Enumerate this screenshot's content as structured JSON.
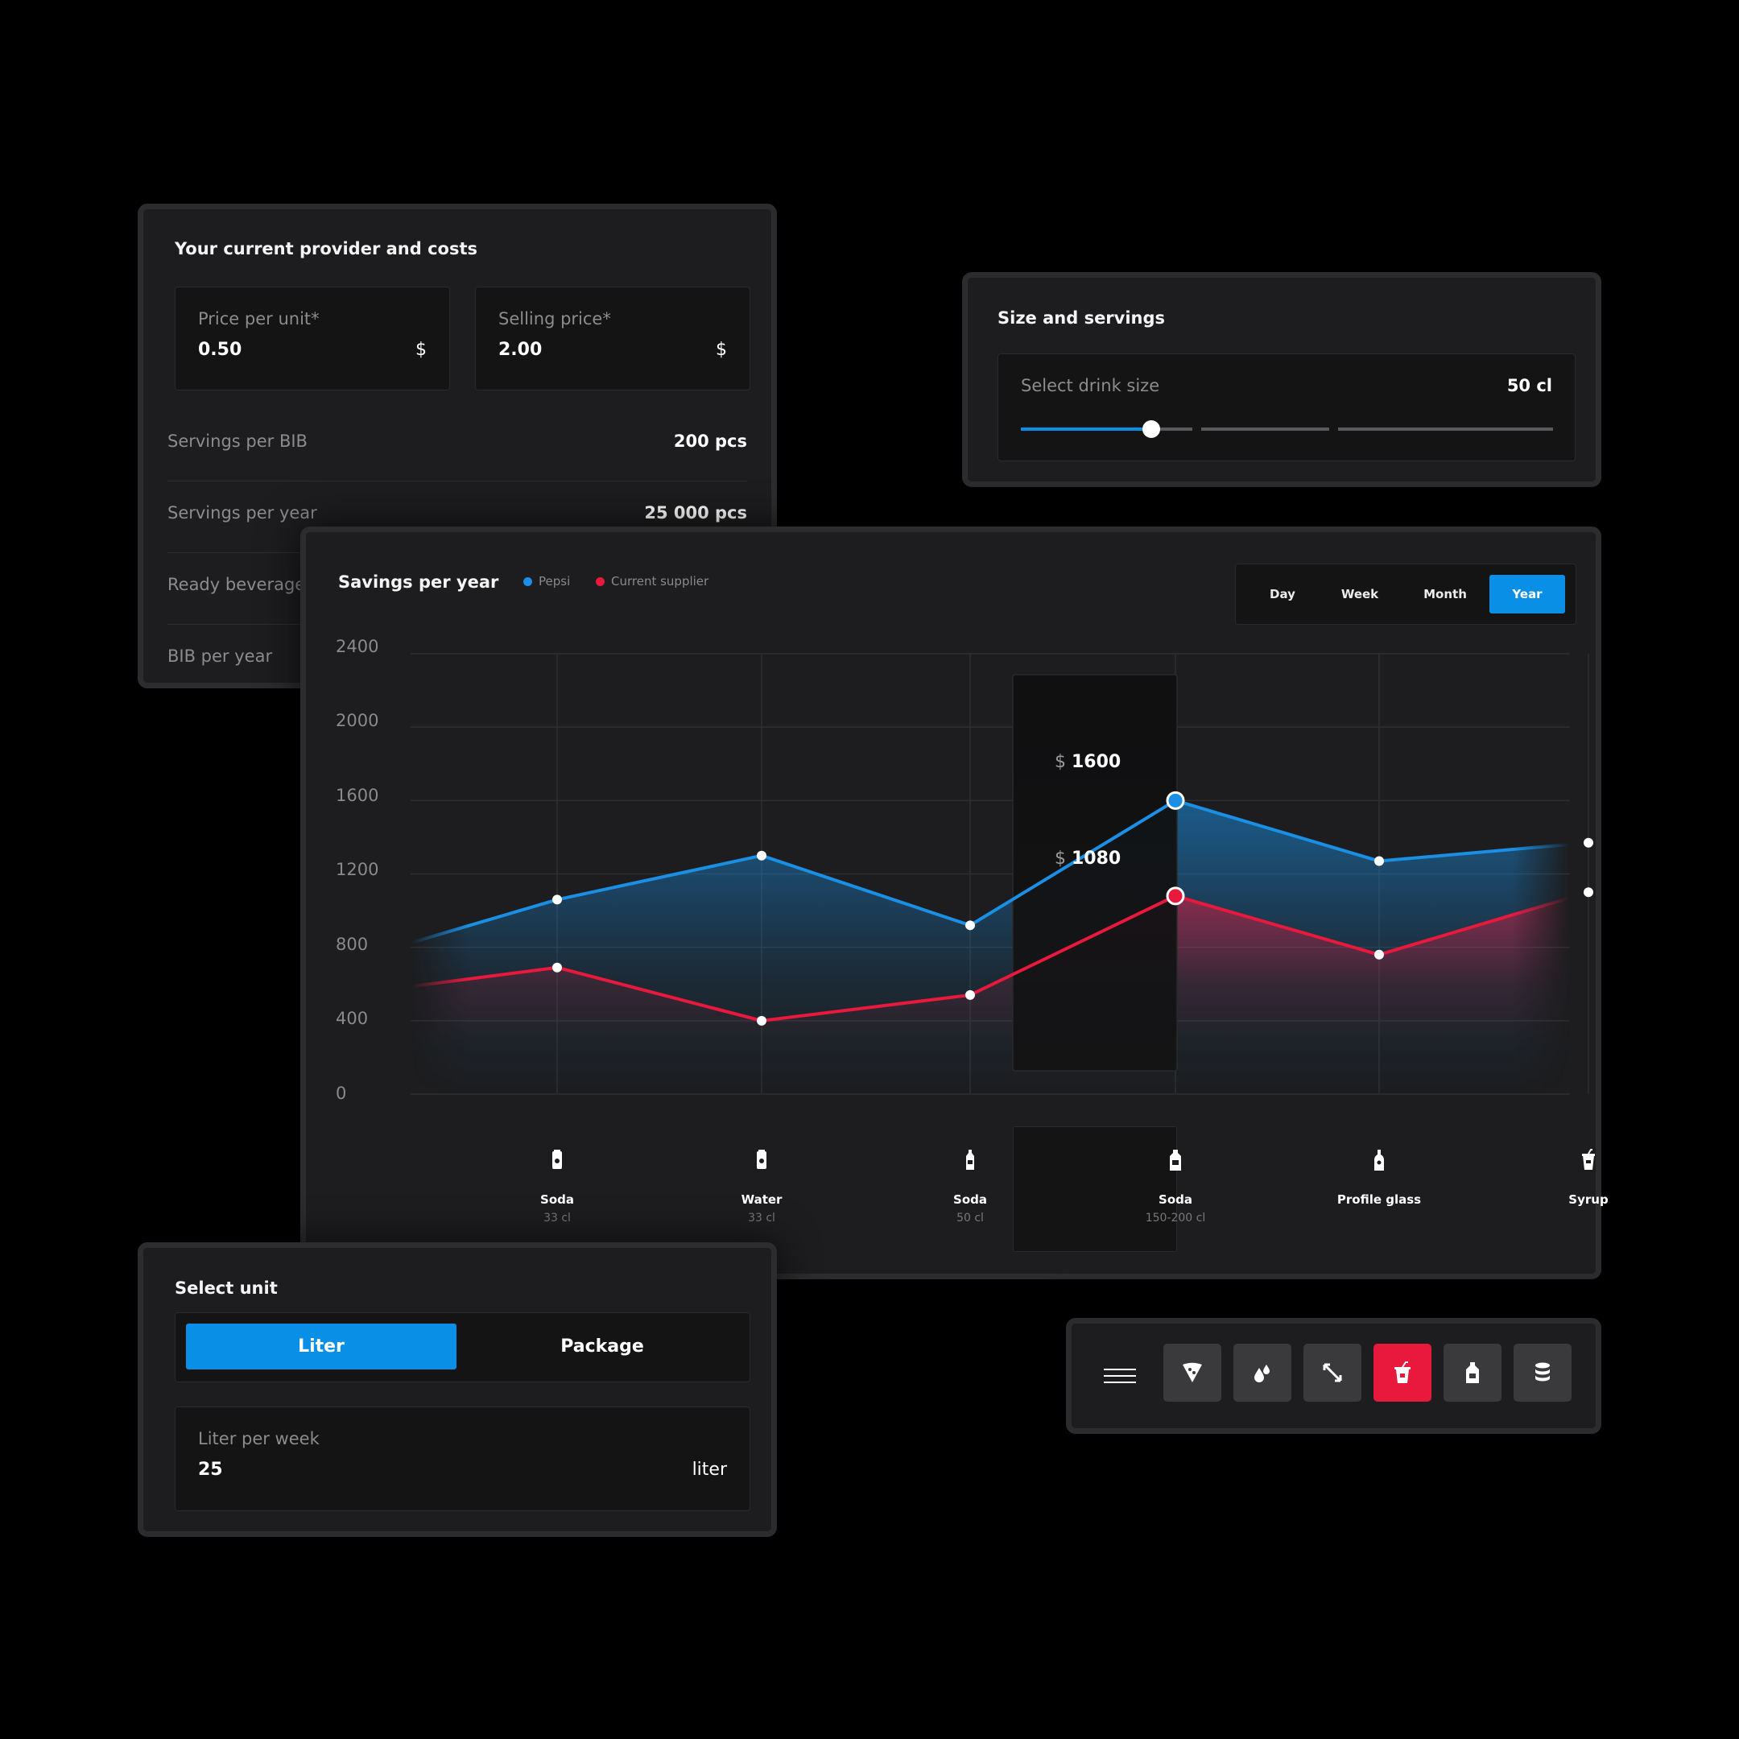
{
  "provider": {
    "title": "Your current provider and costs",
    "price_per_unit": {
      "label": "Price per unit*",
      "value": "0.50",
      "unit": "$"
    },
    "selling_price": {
      "label": "Selling price*",
      "value": "2.00",
      "unit": "$"
    },
    "rows": [
      {
        "label": "Servings per BIB",
        "value": "200 pcs"
      },
      {
        "label": "Servings per year",
        "value": "25 000 pcs"
      },
      {
        "label": "Ready beverage",
        "value": ""
      },
      {
        "label": "BIB per year",
        "value": ""
      }
    ]
  },
  "size": {
    "title": "Size and servings",
    "label": "Select drink size",
    "value": "50 cl",
    "slider_level": 0.245
  },
  "savings": {
    "title": "Savings per year",
    "periods": [
      "Day",
      "Week",
      "Month",
      "Year"
    ],
    "active_period": "Year",
    "tooltip": {
      "currency": "$",
      "pepsi": "1600",
      "current": "1080"
    },
    "categories": [
      {
        "name": "Soda",
        "sub": "33 cl",
        "icon": "can-icon"
      },
      {
        "name": "Water",
        "sub": "33 cl",
        "icon": "can-icon"
      },
      {
        "name": "Soda",
        "sub": "50 cl",
        "icon": "bottle-icon"
      },
      {
        "name": "Soda",
        "sub": "150-200 cl",
        "icon": "large-bottle-icon"
      },
      {
        "name": "Profile glass",
        "sub": "",
        "icon": "glass-bottle-icon"
      },
      {
        "name": "Syrup",
        "sub": "",
        "icon": "cup-icon"
      }
    ]
  },
  "chart_data": {
    "type": "area",
    "title": "Savings per year",
    "categories": [
      "Soda 33 cl",
      "Water 33 cl",
      "Soda 50 cl",
      "Soda 150-200 cl",
      "Profile glass",
      "Syrup"
    ],
    "series": [
      {
        "name": "Pepsi",
        "color": "#1a8fe3",
        "values": [
          1060,
          1300,
          920,
          1600,
          1270,
          1370
        ]
      },
      {
        "name": "Current supplier",
        "color": "#e8193c",
        "values": [
          690,
          400,
          540,
          1080,
          760,
          1100
        ]
      }
    ],
    "y_ticks": [
      "2400",
      "2000",
      "1600",
      "1200",
      "800",
      "400",
      "0"
    ],
    "ylim": [
      0,
      2400
    ],
    "grid": true,
    "legend": "top"
  },
  "unit": {
    "title": "Select unit",
    "options": [
      "Liter",
      "Package"
    ],
    "active": "Liter",
    "field": {
      "label": "Liter per week",
      "value": "25",
      "unit": "liter"
    }
  },
  "toolbar": {
    "menu_icon": "menu-icon",
    "tools": [
      "pizza-icon",
      "drops-icon",
      "exchange-icon",
      "cup-icon",
      "bottle-icon",
      "coins-icon"
    ],
    "active_tool": "cup-icon"
  },
  "colors": {
    "accent_blue": "#0a8fe6",
    "accent_red": "#e8193c",
    "panel": "#1d1d1f"
  }
}
